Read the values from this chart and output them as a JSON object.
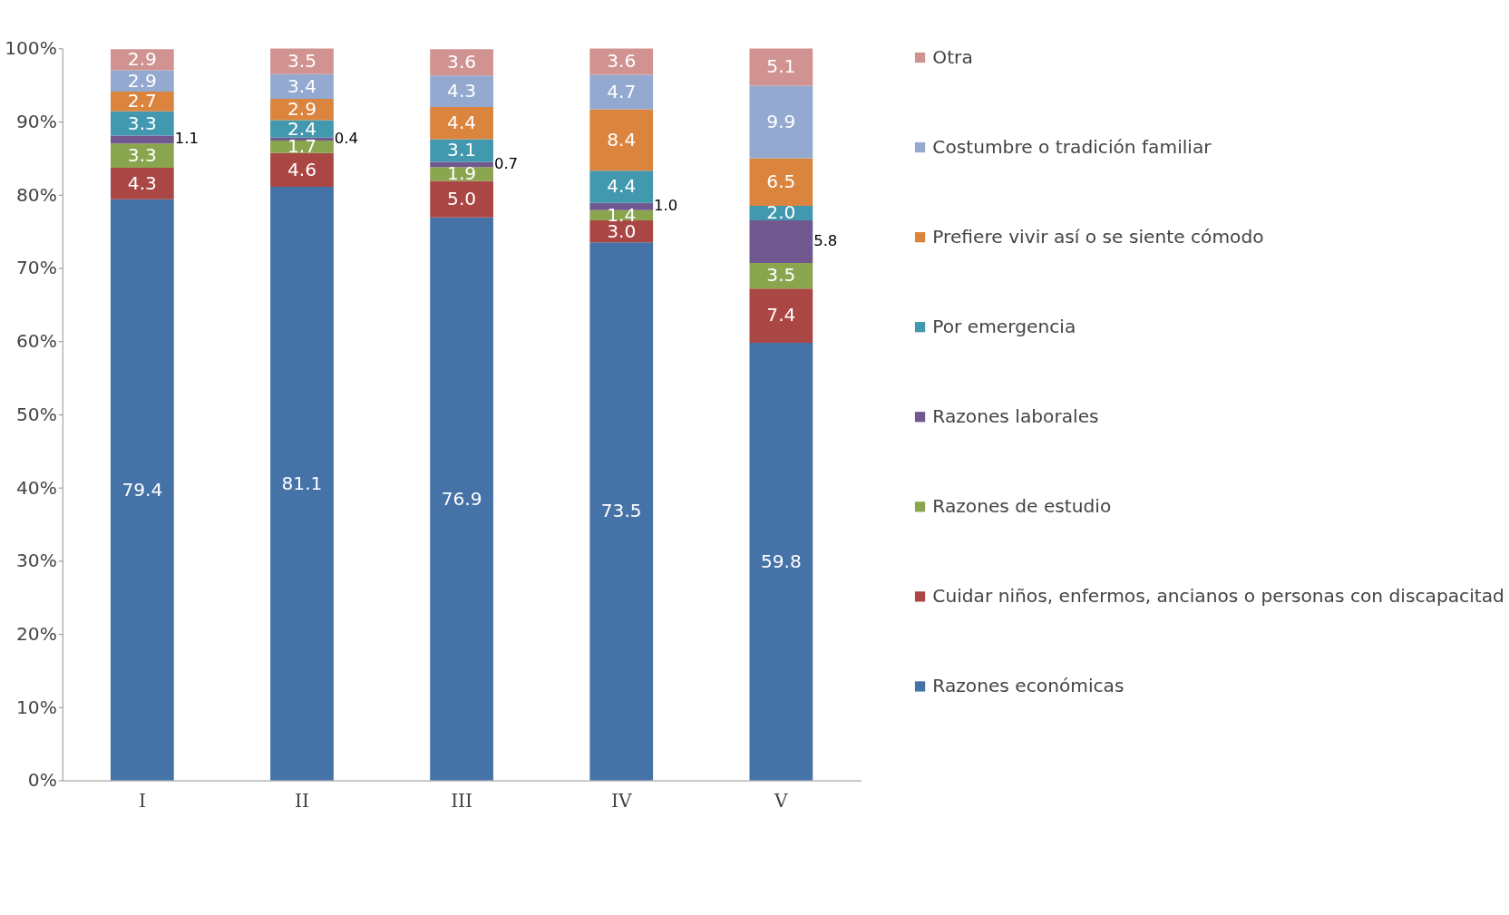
{
  "chart_data": {
    "type": "bar",
    "stacked": true,
    "categories": [
      "I",
      "II",
      "III",
      "IV",
      "V"
    ],
    "series": [
      {
        "name": "Razones económicas",
        "color": "#4572a7",
        "values": [
          79.4,
          81.1,
          76.9,
          73.5,
          59.8
        ],
        "value_labels": [
          "79.4",
          "81.1",
          "76.9",
          "73.5",
          "59.8"
        ]
      },
      {
        "name": "Cuidar niños, enfermos, ancianos o personas con discapacitad",
        "color": "#aa4643",
        "values": [
          4.3,
          4.6,
          5.0,
          3.0,
          7.4
        ],
        "value_labels": [
          "4.3",
          "4.6",
          "5.0",
          "3.0",
          "7.4"
        ]
      },
      {
        "name": "Razones de estudio",
        "color": "#89a54e",
        "values": [
          3.3,
          1.7,
          1.9,
          1.4,
          3.5
        ],
        "value_labels": [
          "3.3",
          "1.7",
          "1.9",
          "1.4",
          "3.5"
        ]
      },
      {
        "name": "Razones laborales",
        "color": "#71588f",
        "values": [
          1.1,
          0.4,
          0.7,
          1.0,
          5.8
        ],
        "value_labels": [
          "1.1",
          "0.4",
          "0.7",
          "1.0",
          "5.8"
        ]
      },
      {
        "name": "Por emergencia",
        "color": "#4198af",
        "values": [
          3.3,
          2.4,
          3.1,
          4.4,
          2.0
        ],
        "value_labels": [
          "3.3",
          "2.4",
          "3.1",
          "4.4",
          "2.0"
        ]
      },
      {
        "name": "Prefiere vivir así o se siente cómodo",
        "color": "#db843d",
        "values": [
          2.7,
          2.9,
          4.4,
          8.4,
          6.5
        ],
        "value_labels": [
          "2.7",
          "2.9",
          "4.4",
          "8.4",
          "6.5"
        ]
      },
      {
        "name": "Costumbre o tradición familiar",
        "color": "#93a9cf",
        "values": [
          2.9,
          3.4,
          4.3,
          4.7,
          9.9
        ],
        "value_labels": [
          "2.9",
          "3.4",
          "4.3",
          "4.7",
          "9.9"
        ]
      },
      {
        "name": "Otra",
        "color": "#d19392",
        "values": [
          2.9,
          3.5,
          3.6,
          3.6,
          5.1
        ],
        "value_labels": [
          "2.9",
          "3.5",
          "3.6",
          "3.6",
          "5.1"
        ]
      }
    ],
    "ylim": [
      0,
      100
    ],
    "yticks": [
      {
        "value": 0,
        "label": "0%"
      },
      {
        "value": 10,
        "label": "10%"
      },
      {
        "value": 20,
        "label": "20%"
      },
      {
        "value": 30,
        "label": "30%"
      },
      {
        "value": 40,
        "label": "40%"
      },
      {
        "value": 50,
        "label": "50%"
      },
      {
        "value": 60,
        "label": "60%"
      },
      {
        "value": 70,
        "label": "70%"
      },
      {
        "value": 80,
        "label": "80%"
      },
      {
        "value": 90,
        "label": "90%"
      },
      {
        "value": 100,
        "label": "100%"
      }
    ],
    "grid": false,
    "legend": "right"
  }
}
